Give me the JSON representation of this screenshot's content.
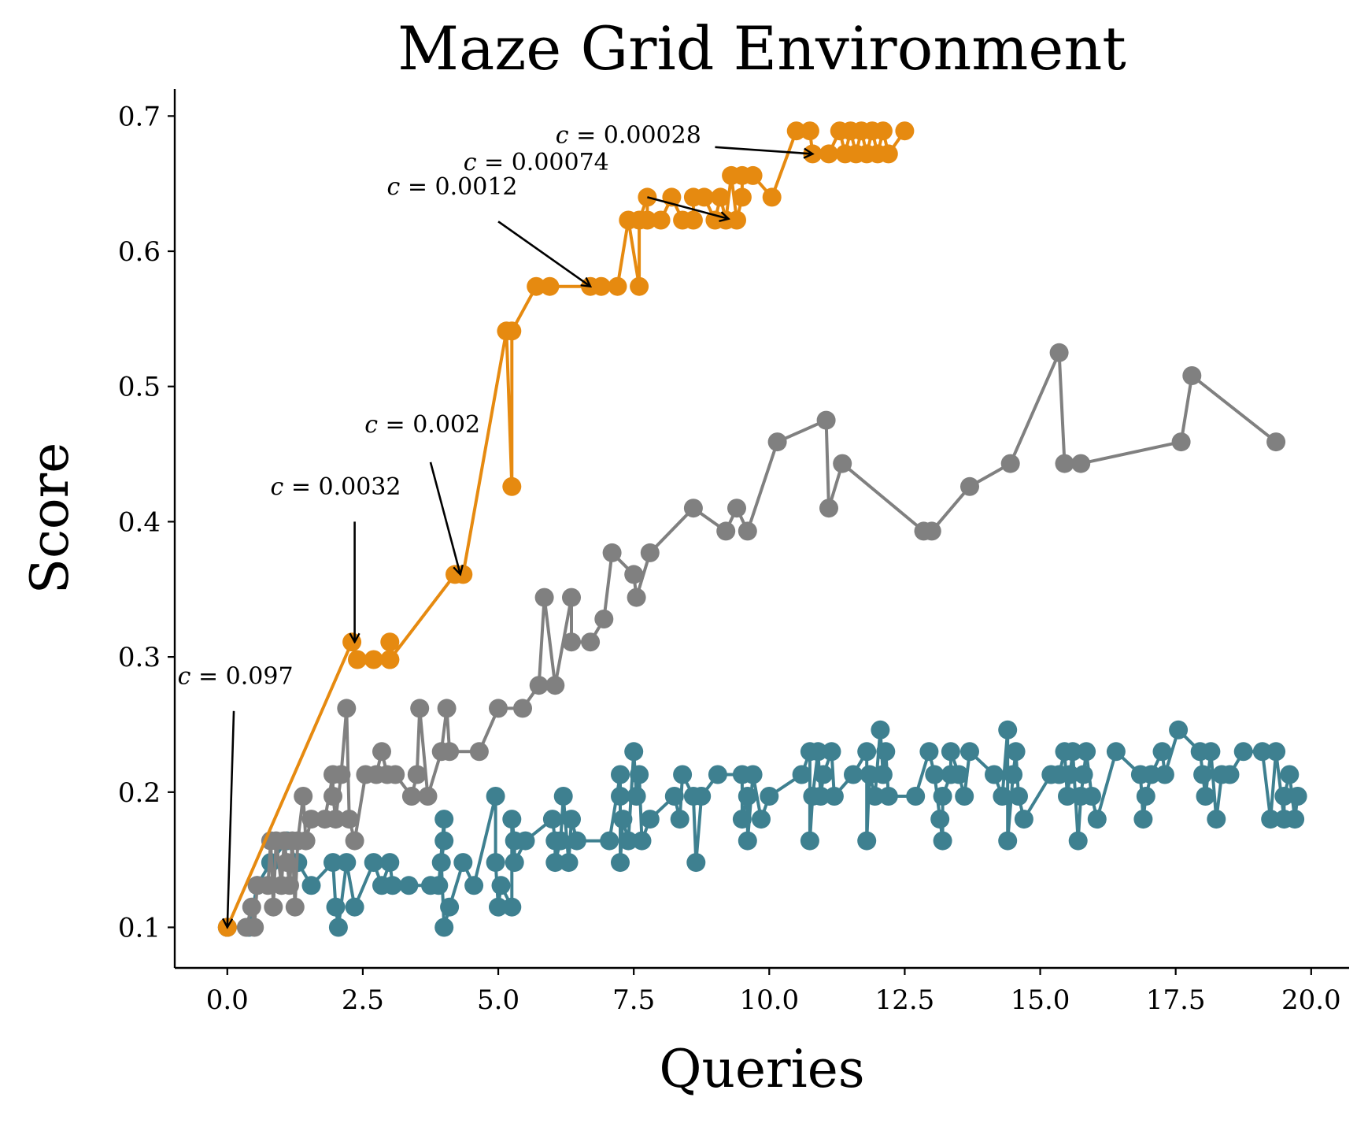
{
  "chart_data": {
    "type": "line",
    "title": "Maze Grid Environment",
    "xlabel": "Queries",
    "ylabel": "Score",
    "xlim": [
      -0.97,
      20.7
    ],
    "ylim": [
      0.07,
      0.72
    ],
    "xticks": [
      0.0,
      2.5,
      5.0,
      7.5,
      10.0,
      12.5,
      15.0,
      17.5,
      20.0
    ],
    "xtick_labels": [
      "0.0",
      "2.5",
      "5.0",
      "7.5",
      "10.0",
      "12.5",
      "15.0",
      "17.5",
      "20.0"
    ],
    "yticks": [
      0.1,
      0.2,
      0.3,
      0.4,
      0.5,
      0.6,
      0.7
    ],
    "ytick_labels": [
      "0.1",
      "0.2",
      "0.3",
      "0.4",
      "0.5",
      "0.6",
      "0.7"
    ],
    "grid": false,
    "legend": "none",
    "series": [
      {
        "name": "orange",
        "color": "#E68A10",
        "points": [
          [
            0.0,
            0.1
          ],
          [
            2.3,
            0.311
          ],
          [
            2.4,
            0.298
          ],
          [
            2.7,
            0.298
          ],
          [
            3.0,
            0.298
          ],
          [
            3.0,
            0.311
          ],
          [
            3.0,
            0.298
          ],
          [
            4.2,
            0.361
          ],
          [
            4.35,
            0.361
          ],
          [
            5.15,
            0.541
          ],
          [
            5.25,
            0.426
          ],
          [
            5.25,
            0.541
          ],
          [
            5.7,
            0.574
          ],
          [
            5.95,
            0.574
          ],
          [
            6.7,
            0.574
          ],
          [
            6.9,
            0.574
          ],
          [
            7.2,
            0.574
          ],
          [
            7.4,
            0.623
          ],
          [
            7.6,
            0.574
          ],
          [
            7.6,
            0.623
          ],
          [
            7.75,
            0.64
          ],
          [
            7.75,
            0.623
          ],
          [
            8.0,
            0.623
          ],
          [
            8.2,
            0.64
          ],
          [
            8.4,
            0.623
          ],
          [
            8.6,
            0.623
          ],
          [
            8.6,
            0.64
          ],
          [
            8.8,
            0.64
          ],
          [
            9.0,
            0.623
          ],
          [
            9.1,
            0.64
          ],
          [
            9.2,
            0.623
          ],
          [
            9.3,
            0.656
          ],
          [
            9.4,
            0.623
          ],
          [
            9.5,
            0.64
          ],
          [
            9.5,
            0.656
          ],
          [
            9.7,
            0.656
          ],
          [
            10.05,
            0.64
          ],
          [
            10.5,
            0.689
          ],
          [
            10.75,
            0.689
          ],
          [
            10.8,
            0.672
          ],
          [
            11.1,
            0.672
          ],
          [
            11.3,
            0.689
          ],
          [
            11.4,
            0.672
          ],
          [
            11.5,
            0.689
          ],
          [
            11.6,
            0.672
          ],
          [
            11.7,
            0.689
          ],
          [
            11.8,
            0.672
          ],
          [
            11.9,
            0.689
          ],
          [
            12.0,
            0.672
          ],
          [
            12.1,
            0.689
          ],
          [
            12.2,
            0.672
          ],
          [
            12.5,
            0.689
          ]
        ]
      },
      {
        "name": "gray",
        "color": "#808080",
        "points": [
          [
            0.0,
            0.1
          ],
          [
            0.35,
            0.1
          ],
          [
            0.45,
            0.115
          ],
          [
            0.5,
            0.1
          ],
          [
            0.55,
            0.131
          ],
          [
            0.75,
            0.131
          ],
          [
            0.8,
            0.164
          ],
          [
            0.85,
            0.115
          ],
          [
            0.9,
            0.164
          ],
          [
            1.0,
            0.131
          ],
          [
            1.05,
            0.164
          ],
          [
            1.1,
            0.148
          ],
          [
            1.15,
            0.131
          ],
          [
            1.2,
            0.164
          ],
          [
            1.25,
            0.115
          ],
          [
            1.3,
            0.164
          ],
          [
            1.4,
            0.197
          ],
          [
            1.45,
            0.164
          ],
          [
            1.55,
            0.18
          ],
          [
            1.8,
            0.18
          ],
          [
            1.95,
            0.213
          ],
          [
            1.95,
            0.197
          ],
          [
            2.0,
            0.18
          ],
          [
            2.1,
            0.213
          ],
          [
            2.2,
            0.262
          ],
          [
            2.25,
            0.18
          ],
          [
            2.35,
            0.164
          ],
          [
            2.55,
            0.213
          ],
          [
            2.75,
            0.213
          ],
          [
            2.85,
            0.23
          ],
          [
            2.95,
            0.213
          ],
          [
            3.1,
            0.213
          ],
          [
            3.4,
            0.197
          ],
          [
            3.5,
            0.213
          ],
          [
            3.55,
            0.262
          ],
          [
            3.7,
            0.197
          ],
          [
            3.95,
            0.23
          ],
          [
            4.05,
            0.262
          ],
          [
            4.1,
            0.23
          ],
          [
            4.65,
            0.23
          ],
          [
            5.0,
            0.262
          ],
          [
            5.45,
            0.262
          ],
          [
            5.75,
            0.279
          ],
          [
            5.85,
            0.344
          ],
          [
            6.05,
            0.279
          ],
          [
            6.35,
            0.344
          ],
          [
            6.35,
            0.311
          ],
          [
            6.7,
            0.311
          ],
          [
            6.95,
            0.328
          ],
          [
            7.1,
            0.377
          ],
          [
            7.5,
            0.361
          ],
          [
            7.55,
            0.344
          ],
          [
            7.8,
            0.377
          ],
          [
            8.6,
            0.41
          ],
          [
            9.2,
            0.393
          ],
          [
            9.4,
            0.41
          ],
          [
            9.6,
            0.393
          ],
          [
            10.15,
            0.459
          ],
          [
            11.05,
            0.475
          ],
          [
            11.1,
            0.41
          ],
          [
            11.35,
            0.443
          ],
          [
            12.85,
            0.393
          ],
          [
            13.0,
            0.393
          ],
          [
            13.7,
            0.426
          ],
          [
            14.45,
            0.443
          ],
          [
            15.35,
            0.525
          ],
          [
            15.45,
            0.443
          ],
          [
            15.75,
            0.443
          ],
          [
            17.6,
            0.459
          ],
          [
            17.8,
            0.508
          ],
          [
            19.35,
            0.459
          ]
        ]
      },
      {
        "name": "teal",
        "color": "#3E8090",
        "points": [
          [
            0.0,
            0.1
          ],
          [
            0.4,
            0.1
          ],
          [
            0.55,
            0.131
          ],
          [
            0.8,
            0.148
          ],
          [
            1.1,
            0.164
          ],
          [
            1.3,
            0.148
          ],
          [
            1.55,
            0.131
          ],
          [
            1.95,
            0.148
          ],
          [
            2.0,
            0.115
          ],
          [
            2.05,
            0.1
          ],
          [
            2.2,
            0.148
          ],
          [
            2.35,
            0.115
          ],
          [
            2.7,
            0.148
          ],
          [
            2.85,
            0.131
          ],
          [
            3.0,
            0.148
          ],
          [
            3.05,
            0.131
          ],
          [
            3.35,
            0.131
          ],
          [
            3.75,
            0.131
          ],
          [
            3.9,
            0.131
          ],
          [
            4.0,
            0.18
          ],
          [
            4.0,
            0.164
          ],
          [
            3.95,
            0.148
          ],
          [
            4.0,
            0.1
          ],
          [
            4.1,
            0.115
          ],
          [
            4.35,
            0.148
          ],
          [
            4.55,
            0.131
          ],
          [
            4.95,
            0.197
          ],
          [
            4.95,
            0.148
          ],
          [
            5.0,
            0.115
          ],
          [
            5.05,
            0.131
          ],
          [
            5.25,
            0.115
          ],
          [
            5.25,
            0.18
          ],
          [
            5.3,
            0.164
          ],
          [
            5.3,
            0.148
          ],
          [
            5.5,
            0.164
          ],
          [
            6.0,
            0.18
          ],
          [
            6.05,
            0.164
          ],
          [
            6.05,
            0.148
          ],
          [
            6.15,
            0.164
          ],
          [
            6.2,
            0.197
          ],
          [
            6.3,
            0.148
          ],
          [
            6.35,
            0.18
          ],
          [
            6.45,
            0.164
          ],
          [
            7.05,
            0.164
          ],
          [
            7.25,
            0.213
          ],
          [
            7.25,
            0.197
          ],
          [
            7.25,
            0.148
          ],
          [
            7.3,
            0.18
          ],
          [
            7.4,
            0.164
          ],
          [
            7.5,
            0.23
          ],
          [
            7.55,
            0.197
          ],
          [
            7.6,
            0.213
          ],
          [
            7.65,
            0.164
          ],
          [
            7.8,
            0.18
          ],
          [
            8.25,
            0.197
          ],
          [
            8.35,
            0.18
          ],
          [
            8.4,
            0.213
          ],
          [
            8.6,
            0.197
          ],
          [
            8.65,
            0.148
          ],
          [
            8.75,
            0.197
          ],
          [
            9.05,
            0.213
          ],
          [
            9.5,
            0.213
          ],
          [
            9.5,
            0.18
          ],
          [
            9.6,
            0.197
          ],
          [
            9.6,
            0.164
          ],
          [
            9.7,
            0.213
          ],
          [
            9.85,
            0.18
          ],
          [
            10.0,
            0.197
          ],
          [
            10.6,
            0.213
          ],
          [
            10.75,
            0.23
          ],
          [
            10.75,
            0.164
          ],
          [
            10.8,
            0.197
          ],
          [
            10.9,
            0.23
          ],
          [
            10.95,
            0.197
          ],
          [
            11.0,
            0.213
          ],
          [
            11.15,
            0.23
          ],
          [
            11.2,
            0.197
          ],
          [
            11.55,
            0.213
          ],
          [
            11.8,
            0.23
          ],
          [
            11.8,
            0.164
          ],
          [
            11.85,
            0.213
          ],
          [
            11.95,
            0.197
          ],
          [
            12.05,
            0.246
          ],
          [
            12.1,
            0.213
          ],
          [
            12.15,
            0.23
          ],
          [
            12.2,
            0.197
          ],
          [
            12.7,
            0.197
          ],
          [
            12.95,
            0.23
          ],
          [
            13.05,
            0.213
          ],
          [
            13.15,
            0.18
          ],
          [
            13.2,
            0.164
          ],
          [
            13.2,
            0.197
          ],
          [
            13.35,
            0.213
          ],
          [
            13.35,
            0.23
          ],
          [
            13.5,
            0.213
          ],
          [
            13.6,
            0.197
          ],
          [
            13.7,
            0.23
          ],
          [
            14.15,
            0.213
          ],
          [
            14.3,
            0.197
          ],
          [
            14.4,
            0.246
          ],
          [
            14.4,
            0.164
          ],
          [
            14.5,
            0.213
          ],
          [
            14.55,
            0.23
          ],
          [
            14.6,
            0.197
          ],
          [
            14.7,
            0.18
          ],
          [
            15.2,
            0.213
          ],
          [
            15.35,
            0.213
          ],
          [
            15.45,
            0.23
          ],
          [
            15.5,
            0.197
          ],
          [
            15.55,
            0.213
          ],
          [
            15.6,
            0.23
          ],
          [
            15.7,
            0.164
          ],
          [
            15.75,
            0.197
          ],
          [
            15.8,
            0.213
          ],
          [
            15.85,
            0.23
          ],
          [
            15.95,
            0.197
          ],
          [
            16.05,
            0.18
          ],
          [
            16.4,
            0.23
          ],
          [
            16.85,
            0.213
          ],
          [
            16.9,
            0.18
          ],
          [
            16.95,
            0.197
          ],
          [
            17.05,
            0.213
          ],
          [
            17.25,
            0.23
          ],
          [
            17.3,
            0.213
          ],
          [
            17.55,
            0.246
          ],
          [
            17.95,
            0.23
          ],
          [
            18.0,
            0.213
          ],
          [
            18.05,
            0.197
          ],
          [
            18.15,
            0.23
          ],
          [
            18.25,
            0.18
          ],
          [
            18.35,
            0.213
          ],
          [
            18.5,
            0.213
          ],
          [
            18.75,
            0.23
          ],
          [
            19.1,
            0.23
          ],
          [
            19.25,
            0.18
          ],
          [
            19.35,
            0.23
          ],
          [
            19.5,
            0.18
          ],
          [
            19.5,
            0.197
          ],
          [
            19.6,
            0.213
          ],
          [
            19.7,
            0.18
          ],
          [
            19.75,
            0.197
          ]
        ]
      }
    ],
    "annotations": [
      {
        "prefix": "c",
        "text": " = 0.097",
        "label_x": 0.15,
        "label_y": 0.28,
        "tail": [
          0.12,
          0.26
        ],
        "head": [
          0.0,
          0.1
        ]
      },
      {
        "prefix": "c",
        "text": " = 0.0032",
        "label_x": 2.0,
        "label_y": 0.42,
        "tail": [
          2.35,
          0.4
        ],
        "head": [
          2.35,
          0.311
        ]
      },
      {
        "prefix": "c",
        "text": " = 0.002",
        "label_x": 3.6,
        "label_y": 0.466,
        "tail": [
          3.75,
          0.444
        ],
        "head": [
          4.3,
          0.361
        ]
      },
      {
        "prefix": "c",
        "text": " = 0.0012",
        "label_x": 4.15,
        "label_y": 0.642,
        "tail": [
          5.0,
          0.622
        ],
        "head": [
          6.7,
          0.574
        ]
      },
      {
        "prefix": "c",
        "text": " = 0.00074",
        "label_x": 5.7,
        "label_y": 0.66,
        "tail": [
          7.75,
          0.64
        ],
        "head": [
          9.25,
          0.624
        ]
      },
      {
        "prefix": "c",
        "text": " = 0.00028",
        "label_x": 7.4,
        "label_y": 0.68,
        "tail": [
          9.0,
          0.677
        ],
        "head": [
          10.8,
          0.672
        ]
      }
    ]
  }
}
